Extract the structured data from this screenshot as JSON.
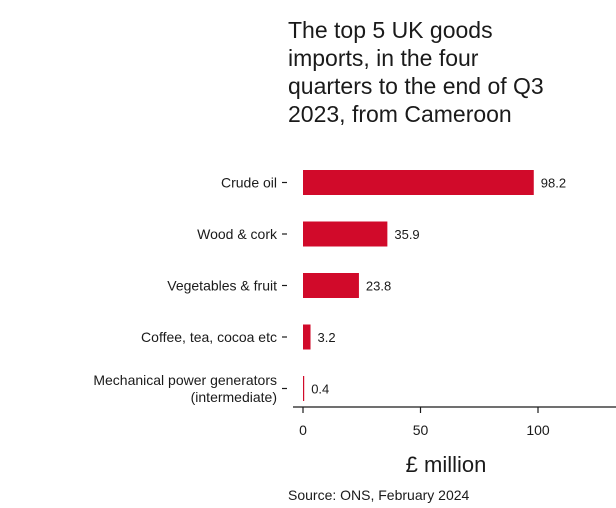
{
  "chart_data": {
    "type": "bar",
    "orientation": "horizontal",
    "title_lines": [
      "The top 5 UK goods",
      "imports, in the four",
      "quarters to the end of Q3",
      "2023, from Cameroon"
    ],
    "categories": [
      [
        "Crude oil"
      ],
      [
        "Wood & cork"
      ],
      [
        "Vegetables & fruit"
      ],
      [
        "Coffee, tea, cocoa etc"
      ],
      [
        "Mechanical power generators",
        "(intermediate)"
      ]
    ],
    "values": [
      98.2,
      35.9,
      23.8,
      3.2,
      0.4
    ],
    "value_labels": [
      "98.2",
      "35.9",
      "23.8",
      "3.2",
      "0.4"
    ],
    "xlabel": "£ million",
    "ylabel": "",
    "xlim": [
      0,
      130
    ],
    "xticks": [
      0,
      50,
      100
    ],
    "tick_labels": [
      "0",
      "50",
      "100"
    ],
    "bar_color": "#d10a2a",
    "grid": false,
    "legend": "none",
    "source": "Source: ONS, February 2024"
  }
}
